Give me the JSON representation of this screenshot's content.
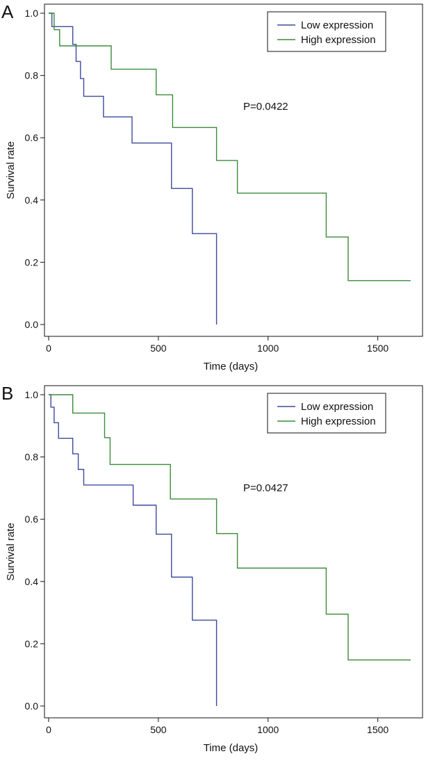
{
  "figure": {
    "colors": {
      "low": "#3b4a9e",
      "high": "#3a8a3a",
      "axis": "#111111"
    }
  },
  "chart_data": [
    {
      "type": "line",
      "panel": "A",
      "xlabel": "Time (days)",
      "ylabel": "Survival rate",
      "xlim": [
        0,
        1650
      ],
      "ylim": [
        0,
        1.0
      ],
      "x_ticks": [
        0,
        500,
        1000,
        1500
      ],
      "x_tick_labels": [
        "0",
        "500",
        "1000",
        "1500"
      ],
      "y_ticks": [
        0.0,
        0.2,
        0.4,
        0.6,
        0.8,
        1.0
      ],
      "y_tick_labels": [
        "0.0",
        "0.2",
        "0.4",
        "0.6",
        "0.8",
        "1.0"
      ],
      "annotation": "P=0.0422",
      "legend": [
        "Low expression",
        "High expression"
      ],
      "legend_position": "top-right",
      "series": [
        {
          "name": "Low expression",
          "step": true,
          "x": [
            0,
            15,
            110,
            125,
            145,
            160,
            250,
            380,
            560,
            655,
            765
          ],
          "y": [
            1.0,
            0.957,
            0.9,
            0.845,
            0.79,
            0.733,
            0.667,
            0.583,
            0.437,
            0.292,
            0.0
          ]
        },
        {
          "name": "High expression",
          "step": true,
          "x": [
            0,
            25,
            50,
            285,
            490,
            565,
            765,
            860,
            1265,
            1365,
            1650
          ],
          "y": [
            1.0,
            0.947,
            0.895,
            0.82,
            0.738,
            0.633,
            0.527,
            0.422,
            0.281,
            0.141,
            0.141
          ]
        }
      ]
    },
    {
      "type": "line",
      "panel": "B",
      "xlabel": "Time (days)",
      "ylabel": "Survival rate",
      "xlim": [
        0,
        1650
      ],
      "ylim": [
        0,
        1.0
      ],
      "x_ticks": [
        0,
        500,
        1000,
        1500
      ],
      "x_tick_labels": [
        "0",
        "500",
        "1000",
        "1500"
      ],
      "y_ticks": [
        0.0,
        0.2,
        0.4,
        0.6,
        0.8,
        1.0
      ],
      "y_tick_labels": [
        "0.0",
        "0.2",
        "0.4",
        "0.6",
        "0.8",
        "1.0"
      ],
      "annotation": "P=0.0427",
      "legend": [
        "Low expression",
        "High expression"
      ],
      "legend_position": "top-right",
      "series": [
        {
          "name": "Low expression",
          "step": true,
          "x": [
            0,
            10,
            25,
            45,
            110,
            135,
            160,
            385,
            490,
            560,
            655,
            765
          ],
          "y": [
            1.0,
            0.96,
            0.91,
            0.86,
            0.81,
            0.76,
            0.71,
            0.645,
            0.552,
            0.414,
            0.276,
            0.0
          ]
        },
        {
          "name": "High expression",
          "step": true,
          "x": [
            0,
            110,
            255,
            280,
            555,
            765,
            860,
            1265,
            1365,
            1650
          ],
          "y": [
            1.0,
            0.941,
            0.862,
            0.776,
            0.665,
            0.554,
            0.443,
            0.295,
            0.148,
            0.148
          ]
        }
      ]
    }
  ]
}
